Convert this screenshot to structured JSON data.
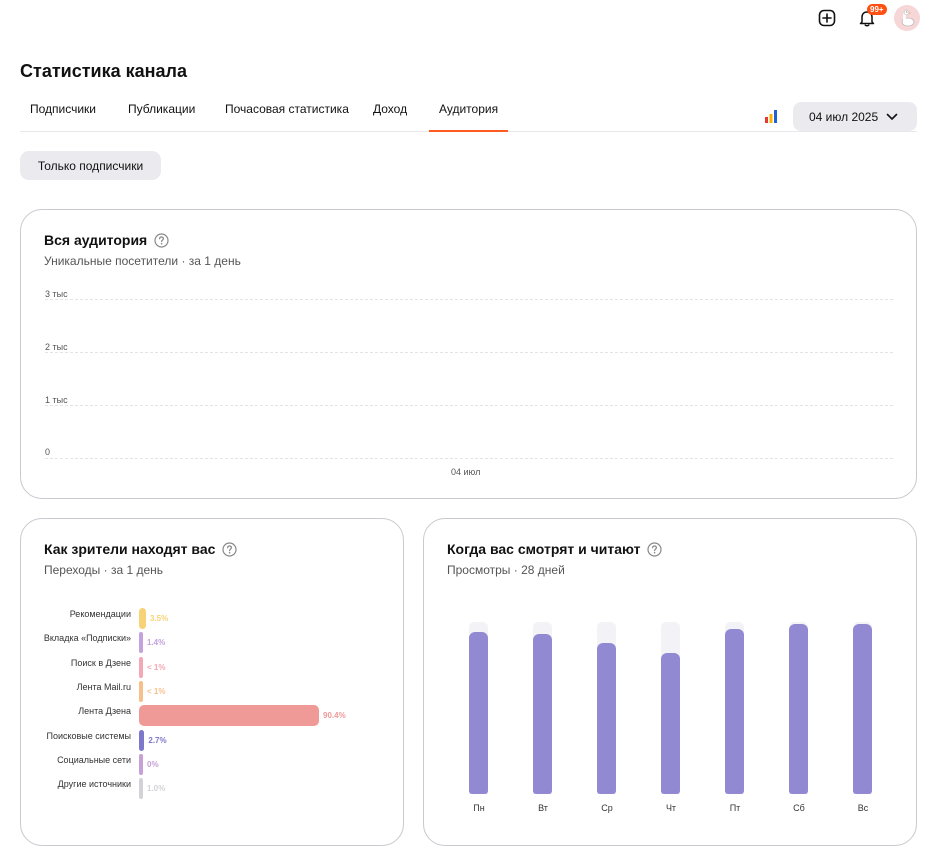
{
  "topbar": {
    "notifications_badge": "99+"
  },
  "page_title": "Статистика канала",
  "tabs": [
    "Подписчики",
    "Публикации",
    "Почасовая статистика",
    "Доход",
    "Аудитория"
  ],
  "active_tab": "Аудитория",
  "date_selector": {
    "label": "04 июл 2025"
  },
  "filter_button": "Только подписчики",
  "audience_card": {
    "title": "Вся аудитория",
    "subtitle": "Уникальные посетители · за 1 день",
    "y_ticks": [
      "3 тыс",
      "2 тыс",
      "1 тыс",
      "0"
    ],
    "x_label": "04 июл"
  },
  "sources_card": {
    "title": "Как зрители находят вас",
    "subtitle": "Переходы · за 1 день"
  },
  "weekday_card": {
    "title": "Когда вас смотрят и читают",
    "subtitle": "Просмотры · 28 дней"
  },
  "colors": {
    "accent": "#ff5a1f",
    "weekday_bar": "#918ad3",
    "lenta_dzena": "#ef9a96",
    "recommendations": "#f7d277"
  },
  "chart_data": [
    {
      "type": "line",
      "title": "Вся аудитория",
      "subtitle": "Уникальные посетители · за 1 день",
      "x": [
        "04 июл"
      ],
      "series": [],
      "ylim": [
        0,
        3000
      ],
      "y_tick_labels": [
        "0",
        "1 тыс",
        "2 тыс",
        "3 тыс"
      ],
      "grid": true
    },
    {
      "type": "bar",
      "orientation": "horizontal",
      "title": "Как зрители находят вас",
      "subtitle": "Переходы · за 1 день",
      "categories": [
        "Рекомендации",
        "Вкладка «Подписки»",
        "Поиск в Дзене",
        "Лента Mail.ru",
        "Лента Дзена",
        "Поисковые системы",
        "Социальные сети",
        "Другие источники"
      ],
      "values": [
        3.5,
        1.4,
        0.5,
        0.5,
        90.4,
        2.7,
        0,
        1.0
      ],
      "value_labels": [
        "3.5%",
        "1.4%",
        "< 1%",
        "< 1%",
        "90.4%",
        "2.7%",
        "0%",
        "1.0%"
      ],
      "colors": [
        "#f7d277",
        "#c4a2dc",
        "#f4a7b4",
        "#f7c08a",
        "#ef9a96",
        "#7d78c9",
        "#c9a0d6",
        "#d2d2d8"
      ]
    },
    {
      "type": "bar",
      "title": "Когда вас смотрят и читают",
      "subtitle": "Просмотры · 28 дней",
      "categories": [
        "Пн",
        "Вт",
        "Ср",
        "Чт",
        "Пт",
        "Сб",
        "Вс"
      ],
      "values": [
        94,
        93,
        88,
        82,
        96,
        99,
        99
      ],
      "ylim": [
        0,
        100
      ]
    }
  ]
}
